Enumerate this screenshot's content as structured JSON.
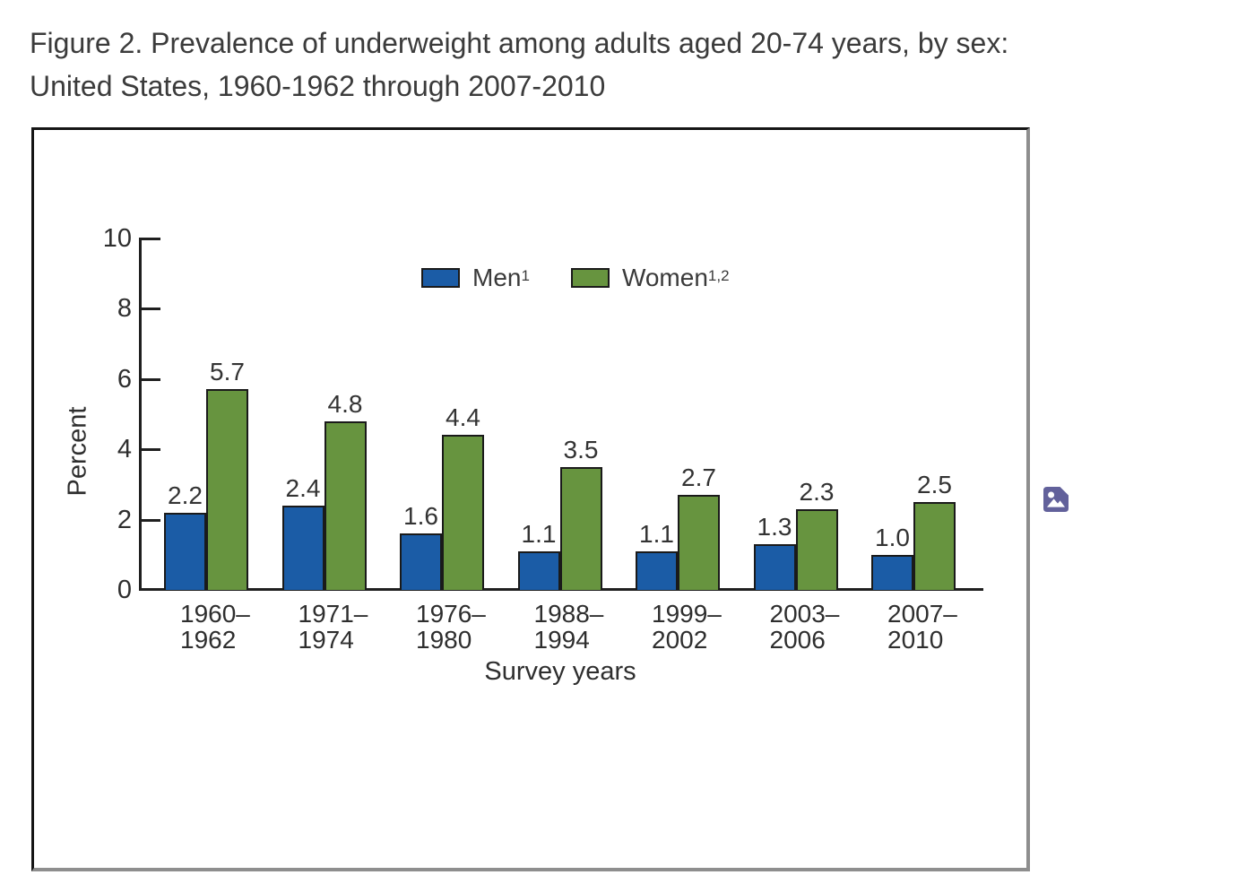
{
  "header": {
    "line1": "Figure 2. Prevalence of underweight among adults aged 20-74 years, by sex:",
    "line2": "United States, 1960-1962 through 2007-2010"
  },
  "icon": {
    "name": "image-placeholder",
    "color": "#62619B"
  },
  "chart_data": {
    "type": "bar",
    "title": "Figure 2. Prevalence of underweight among adults aged 20-74 years, by sex: United States, 1960-1962 through 2007-2010",
    "categories": [
      "1960–1962",
      "1971–1974",
      "1976–1980",
      "1988–1994",
      "1999–2002",
      "2003–2006",
      "2007–2010"
    ],
    "series": [
      {
        "name": "Men",
        "superscript": "1",
        "color": "#1B5CA6",
        "values": [
          2.2,
          2.4,
          1.6,
          1.1,
          1.1,
          1.3,
          1.0
        ]
      },
      {
        "name": "Women",
        "superscript": "1,2",
        "color": "#67943F",
        "values": [
          5.7,
          4.8,
          4.4,
          3.5,
          2.7,
          2.3,
          2.5
        ]
      }
    ],
    "xlabel": "Survey years",
    "ylabel": "Percent",
    "ylim": [
      0,
      10
    ],
    "yticks": [
      0,
      2,
      4,
      6,
      8,
      10
    ],
    "bar_outline": "#1a1a1a",
    "value_labels": true,
    "value_label_format": "0.0",
    "legend_position": "top-center",
    "grid": false
  }
}
